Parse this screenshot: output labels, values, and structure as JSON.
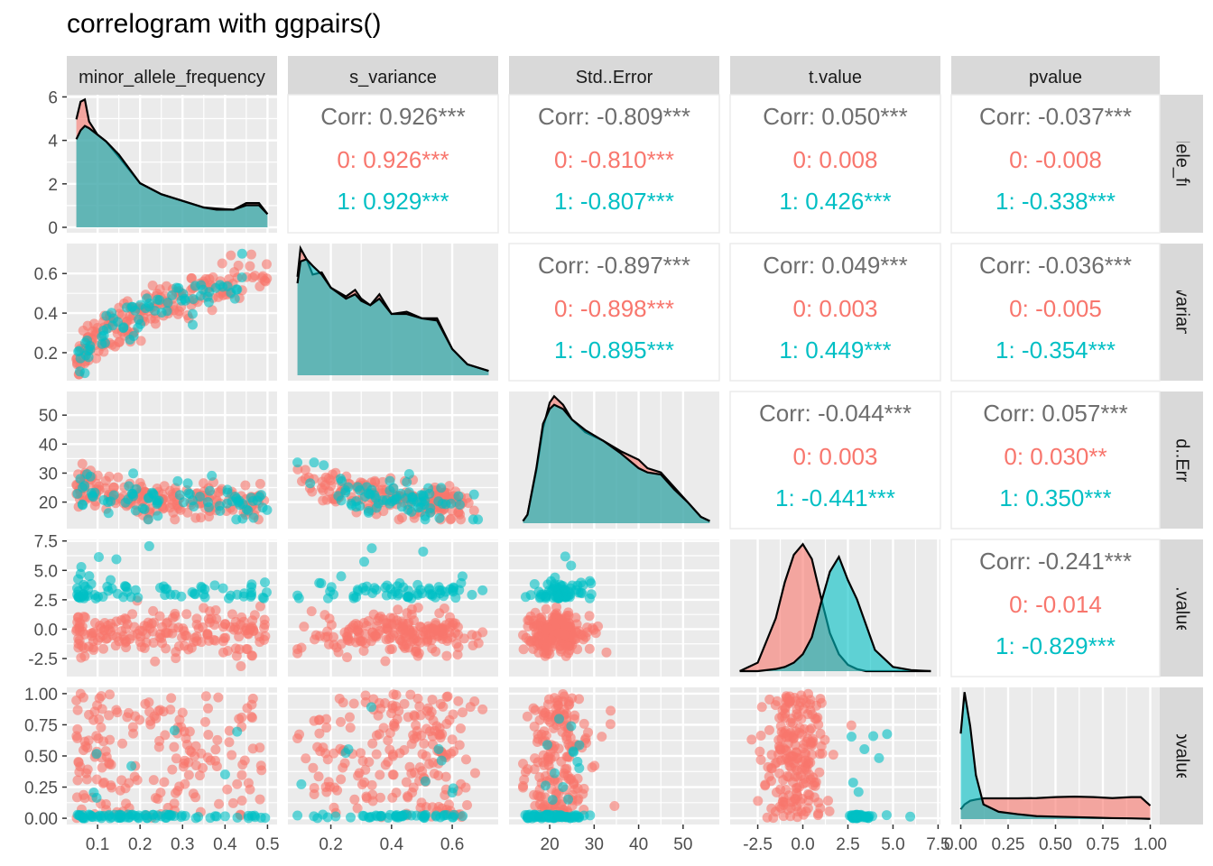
{
  "title": "correlogram with ggpairs()",
  "colors": {
    "group_0": "#F8766D",
    "group_1": "#00BFC4",
    "panel_bg": "#EBEBEB",
    "strip_bg": "#D9D9D9",
    "corr_text": "#6E6E6E",
    "tick_text": "#4D4D4D"
  },
  "chart_data": {
    "type": "scatter-matrix",
    "variables": [
      "minor_allele_frequency",
      "s_variance",
      "Std..Error",
      "t.value",
      "pvalue"
    ],
    "groups": [
      "0",
      "1"
    ],
    "grid": true,
    "axis_ticks": {
      "minor_allele_frequency": [
        0.1,
        0.2,
        0.3,
        0.4,
        0.5
      ],
      "s_variance": [
        0.2,
        0.4,
        0.6
      ],
      "Std..Error": [
        20,
        30,
        40,
        50
      ],
      "t.value": [
        -2.5,
        0.0,
        2.5,
        5.0,
        7.5
      ],
      "pvalue": [
        0.0,
        0.25,
        0.5,
        0.75,
        1.0
      ]
    },
    "axis_tick_labels": {
      "minor_allele_frequency": [
        "0.1",
        "0.2",
        "0.3",
        "0.4",
        "0.5"
      ],
      "s_variance": [
        "0.2",
        "0.4",
        "0.6"
      ],
      "Std..Error": [
        "20",
        "30",
        "40",
        "50"
      ],
      "t.value": [
        "-2.5",
        "0.0",
        "2.5",
        "5.0",
        "7.5"
      ],
      "pvalue": [
        "0.00",
        "0.25",
        "0.50",
        "0.75",
        "1.00"
      ]
    },
    "diag_y_ticks": {
      "values": [
        0,
        2,
        4,
        6
      ],
      "labels": [
        "0",
        "2",
        "4",
        "6"
      ]
    },
    "ranges": {
      "minor_allele_frequency": [
        0.05,
        0.5
      ],
      "s_variance": [
        0.09,
        0.72
      ],
      "Std..Error": [
        13,
        56
      ],
      "t.value": [
        -3.5,
        7.1
      ],
      "pvalue": [
        0,
        1
      ]
    },
    "correlations": [
      {
        "row": 0,
        "col": 1,
        "overall": "Corr: 0.926***",
        "g0": "0: 0.926***",
        "g1": "1: 0.929***"
      },
      {
        "row": 0,
        "col": 2,
        "overall": "Corr: -0.809***",
        "g0": "0: -0.810***",
        "g1": "1: -0.807***"
      },
      {
        "row": 0,
        "col": 3,
        "overall": "Corr: 0.050***",
        "g0": "0: 0.008",
        "g1": "1: 0.426***"
      },
      {
        "row": 0,
        "col": 4,
        "overall": "Corr: -0.037***",
        "g0": "0: -0.008",
        "g1": "1: -0.338***"
      },
      {
        "row": 1,
        "col": 2,
        "overall": "Corr: -0.897***",
        "g0": "0: -0.898***",
        "g1": "1: -0.895***"
      },
      {
        "row": 1,
        "col": 3,
        "overall": "Corr: 0.049***",
        "g0": "0: 0.003",
        "g1": "1: 0.449***"
      },
      {
        "row": 1,
        "col": 4,
        "overall": "Corr: -0.036***",
        "g0": "0: -0.005",
        "g1": "1: -0.354***"
      },
      {
        "row": 2,
        "col": 3,
        "overall": "Corr: -0.044***",
        "g0": "0: 0.003",
        "g1": "1: -0.441***"
      },
      {
        "row": 2,
        "col": 4,
        "overall": "Corr: 0.057***",
        "g0": "0: 0.030**",
        "g1": "1: 0.350***"
      },
      {
        "row": 3,
        "col": 4,
        "overall": "Corr: -0.241***",
        "g0": "0: -0.014",
        "g1": "1: -0.829***"
      }
    ],
    "densities": {
      "minor_allele_frequency": {
        "x": [
          0.05,
          0.06,
          0.07,
          0.08,
          0.1,
          0.12,
          0.15,
          0.2,
          0.25,
          0.3,
          0.35,
          0.38,
          0.42,
          0.45,
          0.48,
          0.5
        ],
        "g0": [
          4.9,
          5.7,
          5.8,
          4.8,
          4.2,
          3.9,
          3.2,
          2.0,
          1.5,
          1.2,
          0.9,
          0.85,
          0.8,
          1.1,
          1.1,
          0.6
        ],
        "g1": [
          4.0,
          4.4,
          4.6,
          4.5,
          4.2,
          3.9,
          3.3,
          2.0,
          1.5,
          1.2,
          0.9,
          0.8,
          0.8,
          1.0,
          1.0,
          0.6
        ]
      },
      "s_variance": {
        "x": [
          0.09,
          0.1,
          0.12,
          0.14,
          0.17,
          0.2,
          0.25,
          0.28,
          0.3,
          0.33,
          0.36,
          0.4,
          0.45,
          0.5,
          0.55,
          0.6,
          0.65,
          0.72
        ],
        "g0": [
          4.5,
          5.8,
          5.3,
          4.6,
          4.7,
          4.0,
          3.6,
          3.9,
          3.5,
          3.2,
          3.7,
          2.8,
          2.9,
          2.6,
          2.6,
          1.2,
          0.5,
          0.2
        ],
        "g1": [
          4.2,
          5.2,
          5.3,
          5.0,
          4.6,
          4.0,
          3.5,
          3.7,
          3.4,
          3.2,
          3.5,
          2.8,
          2.8,
          2.6,
          2.5,
          1.2,
          0.5,
          0.2
        ]
      },
      "Std..Error": {
        "x": [
          14,
          15,
          17,
          18.5,
          20,
          21,
          23,
          25,
          28,
          32,
          36,
          40,
          42,
          45,
          48,
          51,
          54,
          56
        ],
        "g0": [
          0.1,
          0.4,
          2.5,
          4.5,
          5.7,
          6.0,
          5.6,
          4.9,
          4.3,
          3.9,
          3.4,
          3.0,
          2.6,
          2.4,
          1.7,
          1.0,
          0.3,
          0.1
        ],
        "g1": [
          0.1,
          0.4,
          2.6,
          4.7,
          5.4,
          5.6,
          5.4,
          4.9,
          4.4,
          3.9,
          3.3,
          2.6,
          2.4,
          2.3,
          1.6,
          1.0,
          0.3,
          0.1
        ]
      },
      "t.value": {
        "x": [
          -3.5,
          -2.5,
          -1.5,
          -1.0,
          -0.5,
          0.0,
          0.5,
          1.0,
          1.5,
          2.0,
          2.5,
          3.0,
          3.5,
          4.0,
          5.0,
          6.0,
          7.1
        ],
        "g0": [
          0.0,
          0.4,
          2.5,
          4.2,
          5.5,
          6.0,
          5.3,
          3.5,
          1.8,
          0.8,
          0.3,
          0.1,
          0.0,
          0.0,
          0.0,
          0.0,
          0.0
        ],
        "g1": [
          0.0,
          0.0,
          0.1,
          0.2,
          0.4,
          0.8,
          1.6,
          3.2,
          4.7,
          5.4,
          4.3,
          3.4,
          2.2,
          1.0,
          0.2,
          0.05,
          0.0
        ]
      },
      "pvalue": {
        "x": [
          0.0,
          0.02,
          0.05,
          0.08,
          0.12,
          0.2,
          0.3,
          0.4,
          0.5,
          0.6,
          0.7,
          0.8,
          0.9,
          0.95,
          1.0
        ],
        "g0": [
          0.4,
          0.6,
          0.75,
          0.8,
          0.85,
          0.85,
          0.85,
          0.86,
          0.9,
          0.92,
          0.9,
          0.86,
          0.9,
          0.9,
          0.55
        ],
        "g1": [
          3.5,
          5.2,
          3.8,
          1.8,
          0.6,
          0.3,
          0.2,
          0.12,
          0.1,
          0.08,
          0.06,
          0.04,
          0.03,
          0.02,
          0.01
        ]
      }
    }
  }
}
